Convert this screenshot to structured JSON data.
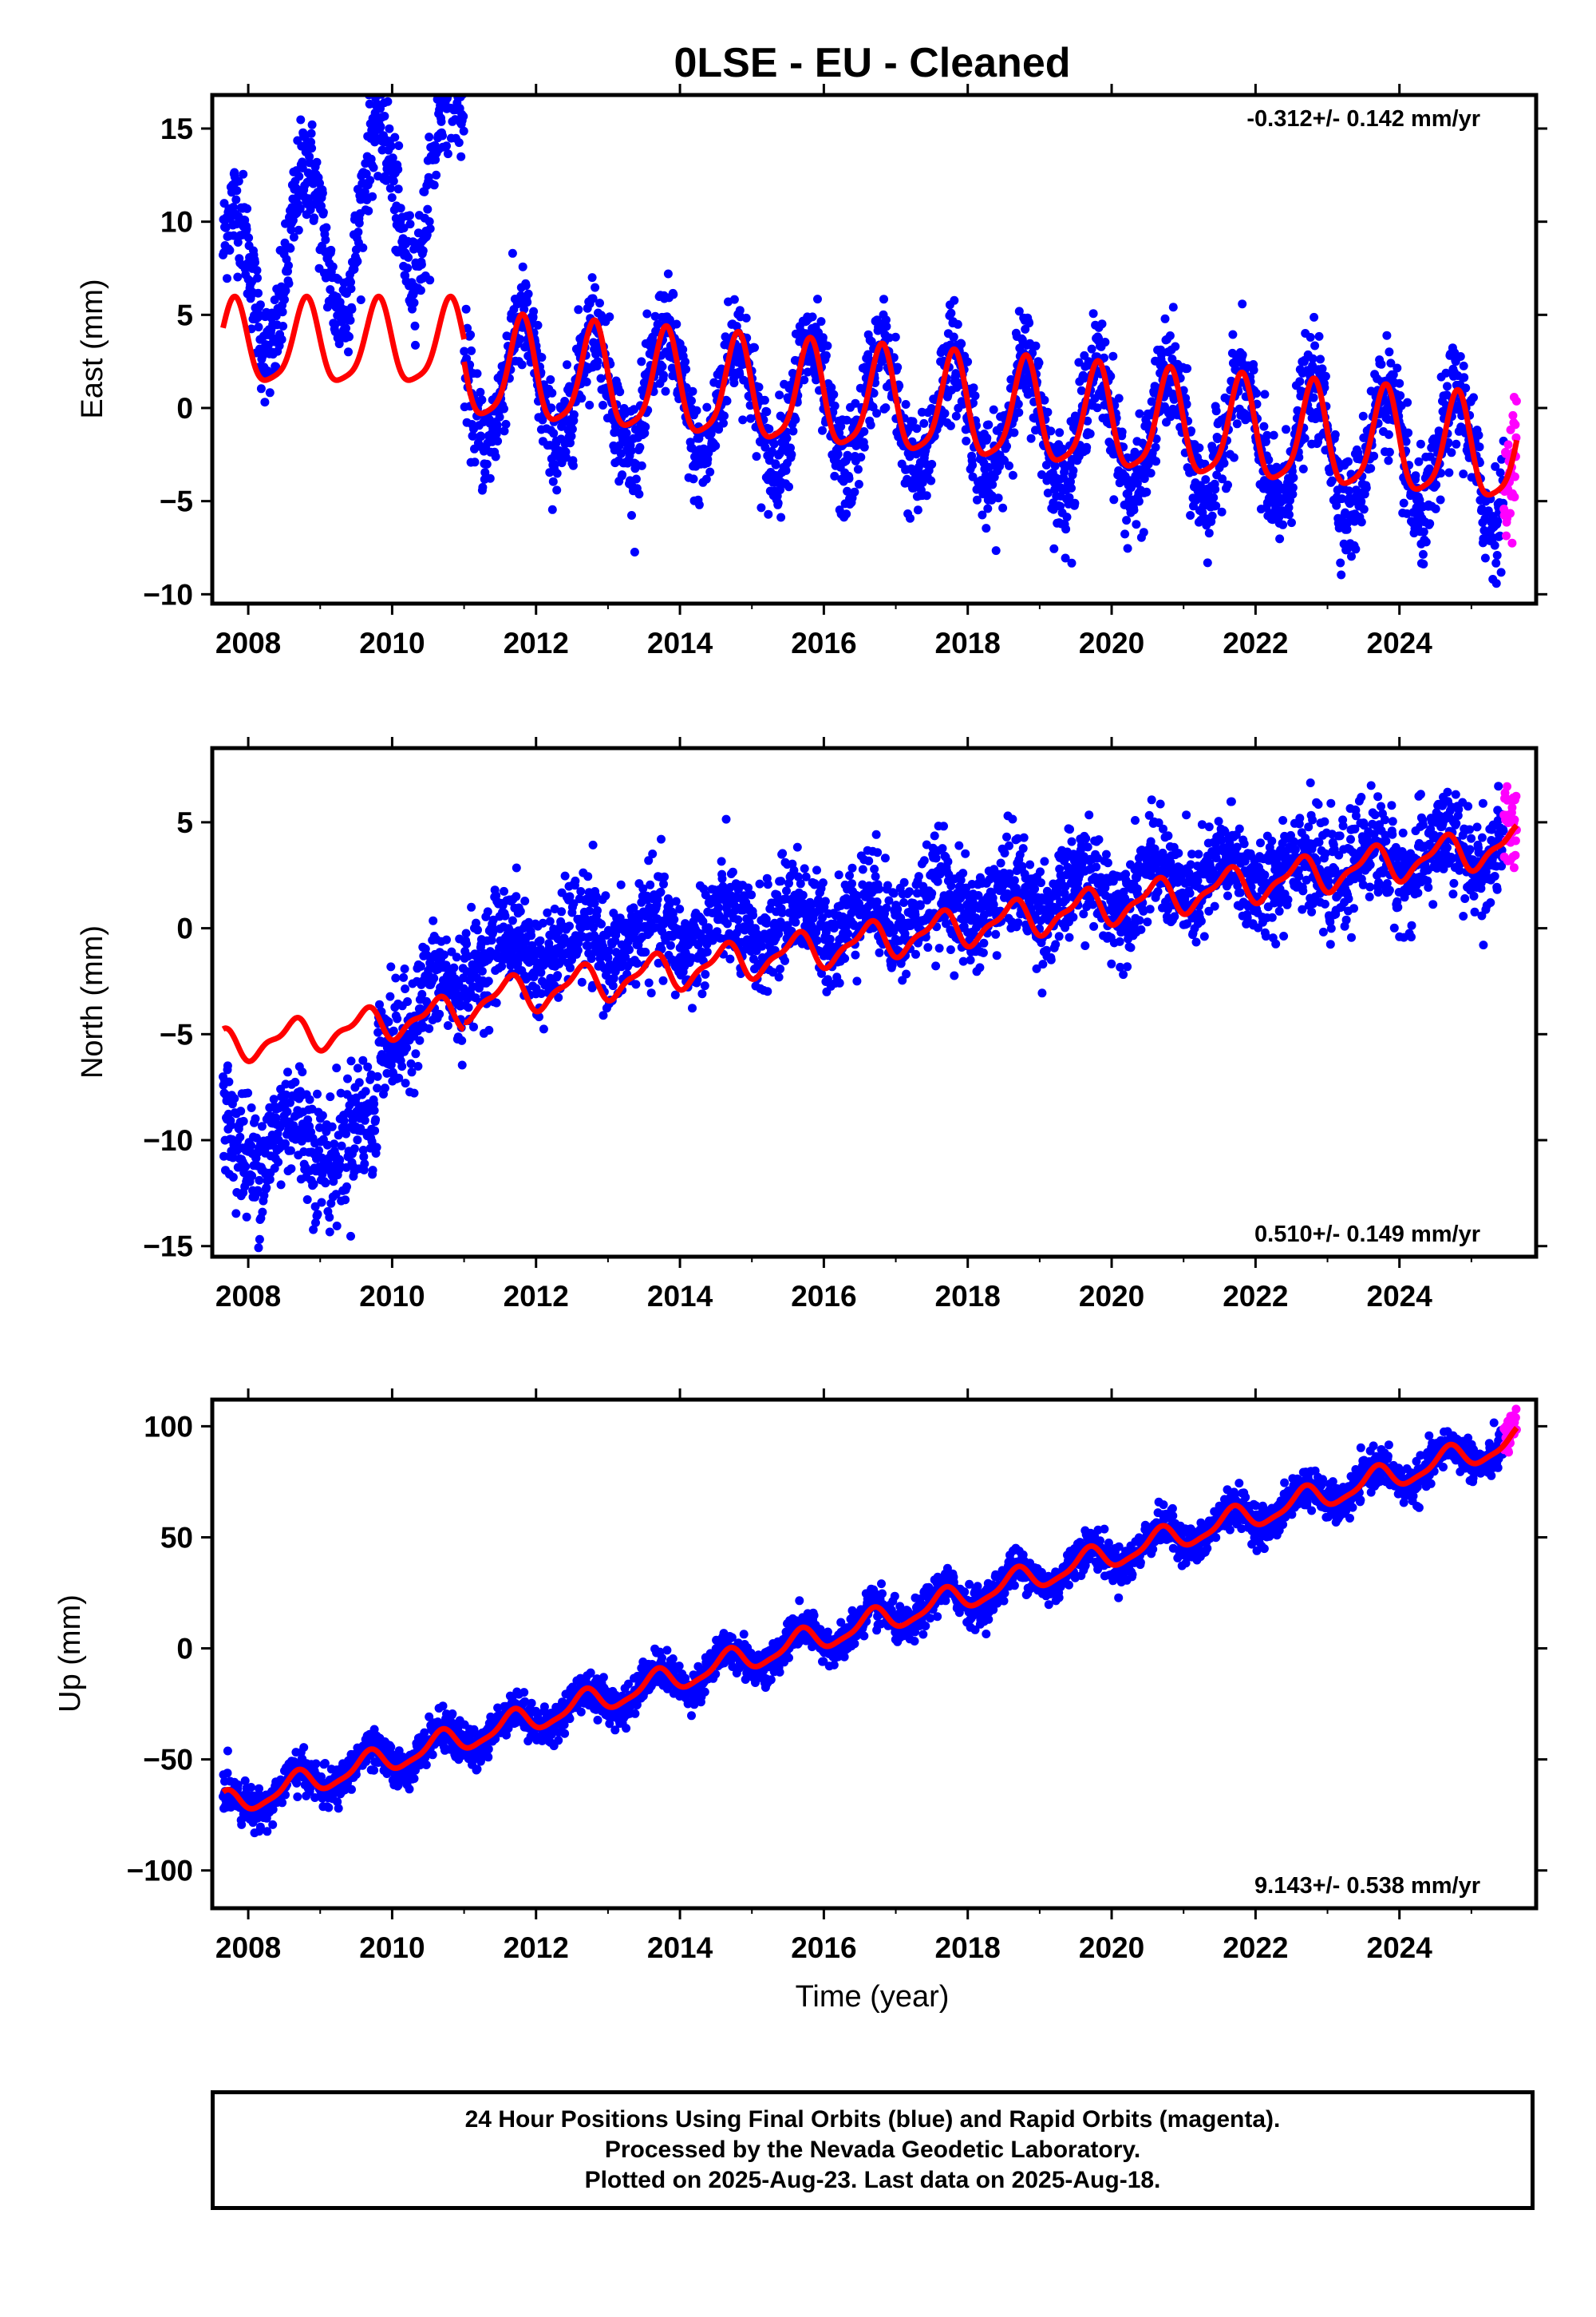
{
  "title": "0LSE  - EU - Cleaned",
  "x_axis_label": "Time (year)",
  "colors": {
    "final_orbits": "#0000ff",
    "rapid_orbits": "#ff00ff",
    "model_fit": "#ff0000"
  },
  "caption": [
    "24 Hour Positions Using Final Orbits (blue) and Rapid Orbits (magenta).",
    "Processed by the Nevada Geodetic Laboratory.",
    "Plotted on 2025-Aug-23. Last data on 2025-Aug-18."
  ],
  "chart_data": [
    {
      "type": "scatter",
      "component": "east",
      "ylabel": "East (mm)",
      "rate_text": "-0.312+/- 0.142 mm/yr",
      "rate_position": "top-right",
      "xlim": [
        2007.5,
        2025.9
      ],
      "ylim": [
        -10.5,
        16.8
      ],
      "x_ticks": [
        2008,
        2010,
        2012,
        2014,
        2016,
        2018,
        2020,
        2022,
        2024
      ],
      "y_ticks": [
        -10,
        -5,
        0,
        5,
        10,
        15
      ],
      "y_tick_labels": [
        "−10",
        "−5",
        "0",
        "5",
        "10",
        "15"
      ],
      "data_start": 2007.65,
      "rapid_start": 2025.45,
      "data_end": 2025.63,
      "model_segments": [
        {
          "x0": 2007.65,
          "x1": 2011.0,
          "offset": 3.3,
          "rate": 0.0,
          "amp1": 2.2,
          "phase1": 0.55,
          "amp2": 0.5,
          "phase2": 0.2
        },
        {
          "x0": 2011.0,
          "x1": 2025.63,
          "offset": 2.0,
          "rate": -0.312,
          "amp1": 2.7,
          "phase1": 0.55,
          "amp2": 0.6,
          "phase2": 0.2
        }
      ],
      "observed_segments": [
        {
          "x0": 2007.65,
          "x1": 2011.0,
          "offset": 6.0,
          "rate": 2.2,
          "amp1": 4.5,
          "phase1": 0.55,
          "scatter": 1.4
        },
        {
          "x0": 2011.0,
          "x1": 2025.63,
          "offset": 1.6,
          "rate": -0.312,
          "amp1": 3.3,
          "phase1": 0.55,
          "scatter": 1.4
        }
      ]
    },
    {
      "type": "scatter",
      "component": "north",
      "ylabel": "North (mm)",
      "rate_text": "0.510+/- 0.149 mm/yr",
      "rate_position": "bottom-right",
      "xlim": [
        2007.5,
        2025.9
      ],
      "ylim": [
        -15.5,
        8.5
      ],
      "x_ticks": [
        2008,
        2010,
        2012,
        2014,
        2016,
        2018,
        2020,
        2022,
        2024
      ],
      "y_ticks": [
        -15,
        -10,
        -5,
        0,
        5
      ],
      "y_tick_labels": [
        "−15",
        "−10",
        "−5",
        "0",
        "5"
      ],
      "data_start": 2007.65,
      "rapid_start": 2025.45,
      "data_end": 2025.63,
      "model_segments": [
        {
          "x0": 2007.65,
          "x1": 2011.0,
          "offset": -5.6,
          "rate": 0.5,
          "amp1": 0.7,
          "phase1": 0.35,
          "amp2": 0.3,
          "phase2": 0.1
        },
        {
          "x0": 2011.0,
          "x1": 2025.63,
          "offset": -3.5,
          "rate": 0.51,
          "amp1": 0.8,
          "phase1": 0.35,
          "amp2": 0.3,
          "phase2": 0.1
        }
      ],
      "observed_segments": [
        {
          "x0": 2007.65,
          "x1": 2009.8,
          "offset": -10.0,
          "rate": 0.0,
          "amp1": 1.2,
          "phase1": 0.35,
          "scatter": 1.5
        },
        {
          "x0": 2009.8,
          "x1": 2011.0,
          "offset": -5.0,
          "rate": 2.0,
          "amp1": 1.0,
          "phase1": 0.35,
          "scatter": 1.3
        },
        {
          "x0": 2011.0,
          "x1": 2025.63,
          "offset": -1.3,
          "rate": 0.35,
          "amp1": 0.9,
          "phase1": 0.35,
          "scatter": 1.2
        }
      ]
    },
    {
      "type": "scatter",
      "component": "up",
      "ylabel": "Up (mm)",
      "rate_text": "9.143+/- 0.538 mm/yr",
      "rate_position": "bottom-right",
      "xlim": [
        2007.5,
        2025.9
      ],
      "ylim": [
        -117,
        112
      ],
      "x_ticks": [
        2008,
        2010,
        2012,
        2014,
        2016,
        2018,
        2020,
        2022,
        2024
      ],
      "y_ticks": [
        -100,
        -50,
        0,
        50,
        100
      ],
      "y_tick_labels": [
        "−100",
        "−50",
        "0",
        "50",
        "100"
      ],
      "data_start": 2007.65,
      "rapid_start": 2025.45,
      "data_end": 2025.63,
      "model_segments": [
        {
          "x0": 2007.65,
          "x1": 2025.63,
          "offset": -71.0,
          "rate": 9.143,
          "amp1": 5.5,
          "phase1": 0.42,
          "amp2": 1.5,
          "phase2": 0.1
        }
      ],
      "observed_segments": [
        {
          "x0": 2007.65,
          "x1": 2025.63,
          "offset": -71.0,
          "rate": 9.143,
          "amp1": 6.5,
          "phase1": 0.42,
          "scatter": 4.2
        }
      ]
    }
  ]
}
